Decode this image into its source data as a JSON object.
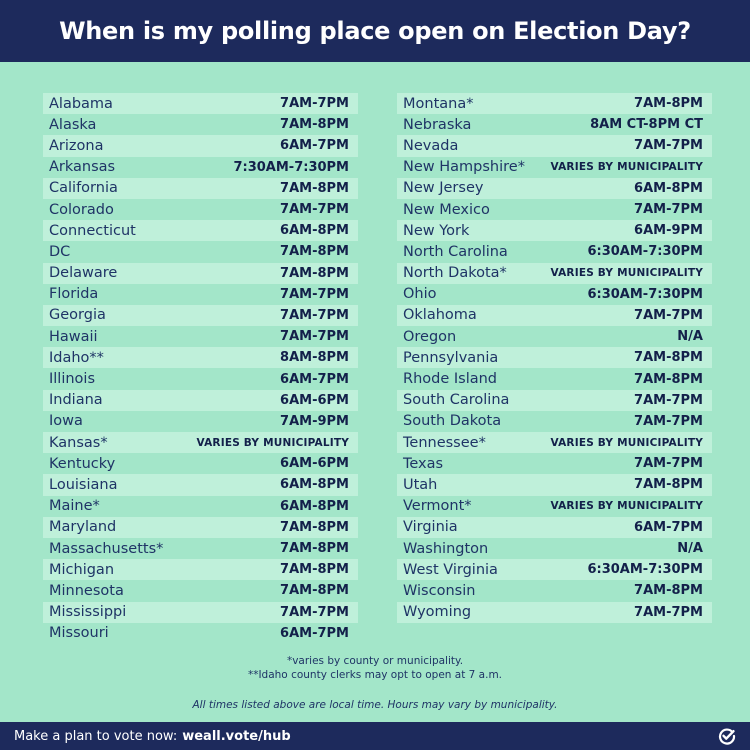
{
  "header": {
    "title": "When is my polling place open on Election Day?"
  },
  "left_column": [
    {
      "state": "Alabama",
      "hours": "7AM-7PM"
    },
    {
      "state": "Alaska",
      "hours": "7AM-8PM"
    },
    {
      "state": "Arizona",
      "hours": "6AM-7PM"
    },
    {
      "state": "Arkansas",
      "hours": "7:30AM-7:30PM"
    },
    {
      "state": "California",
      "hours": "7AM-8PM"
    },
    {
      "state": "Colorado",
      "hours": "7AM-7PM"
    },
    {
      "state": "Connecticut",
      "hours": "6AM-8PM"
    },
    {
      "state": "DC",
      "hours": "7AM-8PM"
    },
    {
      "state": "Delaware",
      "hours": "7AM-8PM"
    },
    {
      "state": "Florida",
      "hours": "7AM-7PM"
    },
    {
      "state": "Georgia",
      "hours": "7AM-7PM"
    },
    {
      "state": "Hawaii",
      "hours": "7AM-7PM"
    },
    {
      "state": "Idaho**",
      "hours": "8AM-8PM"
    },
    {
      "state": "Illinois",
      "hours": "6AM-7PM"
    },
    {
      "state": "Indiana",
      "hours": "6AM-6PM"
    },
    {
      "state": "Iowa",
      "hours": "7AM-9PM"
    },
    {
      "state": "Kansas*",
      "hours": "VARIES BY MUNICIPALITY"
    },
    {
      "state": "Kentucky",
      "hours": "6AM-6PM"
    },
    {
      "state": "Louisiana",
      "hours": "6AM-8PM"
    },
    {
      "state": "Maine*",
      "hours": "6AM-8PM"
    },
    {
      "state": "Maryland",
      "hours": "7AM-8PM"
    },
    {
      "state": "Massachusetts*",
      "hours": "7AM-8PM"
    },
    {
      "state": "Michigan",
      "hours": "7AM-8PM"
    },
    {
      "state": "Minnesota",
      "hours": "7AM-8PM"
    },
    {
      "state": "Mississippi",
      "hours": "7AM-7PM"
    },
    {
      "state": "Missouri",
      "hours": "6AM-7PM"
    }
  ],
  "right_column": [
    {
      "state": "Montana*",
      "hours": "7AM-8PM"
    },
    {
      "state": "Nebraska",
      "hours": "8AM CT-8PM CT"
    },
    {
      "state": "Nevada",
      "hours": "7AM-7PM"
    },
    {
      "state": "New Hampshire*",
      "hours": "VARIES BY MUNICIPALITY"
    },
    {
      "state": "New Jersey",
      "hours": "6AM-8PM"
    },
    {
      "state": "New Mexico",
      "hours": "7AM-7PM"
    },
    {
      "state": "New York",
      "hours": "6AM-9PM"
    },
    {
      "state": "North Carolina",
      "hours": "6:30AM-7:30PM"
    },
    {
      "state": "North Dakota*",
      "hours": "VARIES BY MUNICIPALITY"
    },
    {
      "state": "Ohio",
      "hours": "6:30AM-7:30PM"
    },
    {
      "state": "Oklahoma",
      "hours": "7AM-7PM"
    },
    {
      "state": "Oregon",
      "hours": "N/A"
    },
    {
      "state": "Pennsylvania",
      "hours": "7AM-8PM"
    },
    {
      "state": "Rhode Island",
      "hours": "7AM-8PM"
    },
    {
      "state": "South Carolina",
      "hours": "7AM-7PM"
    },
    {
      "state": "South Dakota",
      "hours": "7AM-7PM"
    },
    {
      "state": "Tennessee*",
      "hours": "VARIES BY MUNICIPALITY"
    },
    {
      "state": "Texas",
      "hours": "7AM-7PM"
    },
    {
      "state": "Utah",
      "hours": "7AM-8PM"
    },
    {
      "state": "Vermont*",
      "hours": "VARIES BY MUNICIPALITY"
    },
    {
      "state": "Virginia",
      "hours": "6AM-7PM"
    },
    {
      "state": "Washington",
      "hours": "N/A"
    },
    {
      "state": "West Virginia",
      "hours": "6:30AM-7:30PM"
    },
    {
      "state": "Wisconsin",
      "hours": "7AM-8PM"
    },
    {
      "state": "Wyoming",
      "hours": "7AM-7PM"
    }
  ],
  "notes": {
    "line1": "*varies by county or municipality.",
    "line2": "**Idaho county clerks may opt to open at 7 a.m.",
    "local_time": "All times listed above are local time. Hours may vary by municipality."
  },
  "footer": {
    "cta": "Make a plan to vote now:",
    "link": "weall.vote/hub",
    "logo_icon": "checkmark-circle-icon"
  },
  "colors": {
    "navy": "#1d2a5c",
    "mint_bg": "#a3e6c9",
    "row_shade": "#bff0da"
  }
}
